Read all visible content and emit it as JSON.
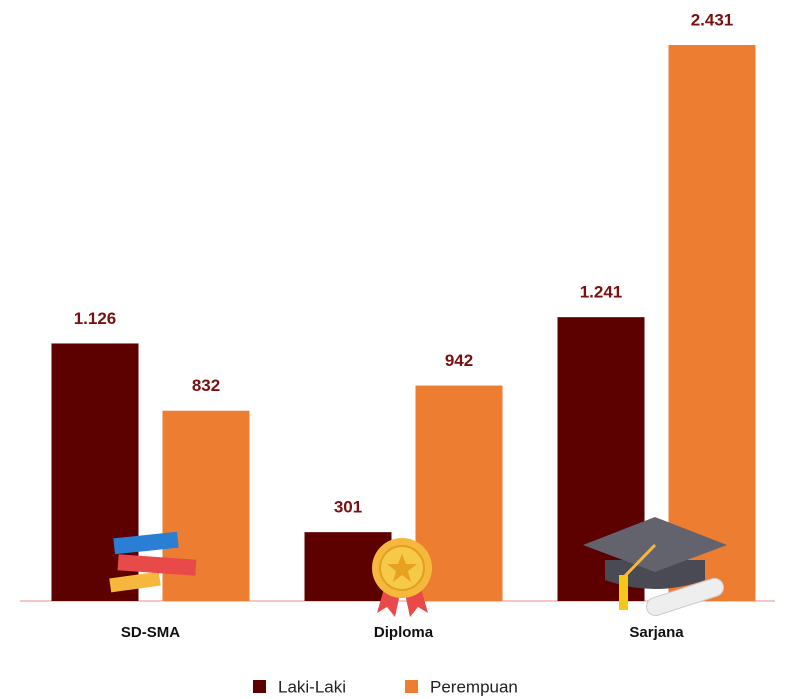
{
  "chart_data": {
    "type": "bar",
    "categories": [
      "SD-SMA",
      "Diploma",
      "Sarjana"
    ],
    "series": [
      {
        "name": "Laki-Laki",
        "color": "#5c0000",
        "values": [
          1126,
          301,
          1241
        ],
        "value_labels": [
          "1.126",
          "301",
          "1.241"
        ]
      },
      {
        "name": "Perempuan",
        "color": "#ed7d31",
        "values": [
          832,
          942,
          2431
        ],
        "value_labels": [
          "832",
          "942",
          "2.431"
        ]
      }
    ]
  }
}
